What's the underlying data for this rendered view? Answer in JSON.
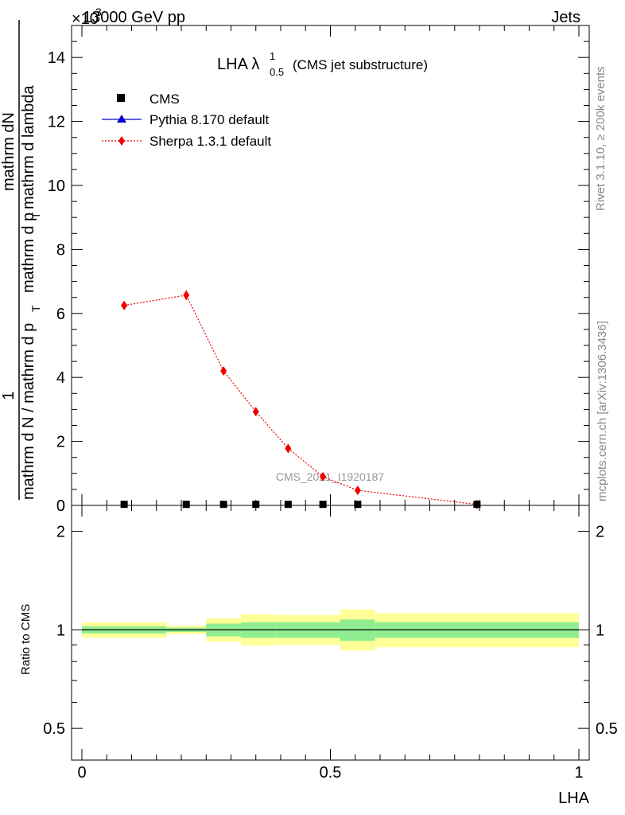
{
  "header": {
    "energy": "13000 GeV pp",
    "process": "Jets",
    "exponent": "×10",
    "exponent_power": "3"
  },
  "side_labels": {
    "rivet": "Rivet 3.1.10, ≥ 200k events",
    "mcplots": "mcplots.cern.ch [arXiv:1306.3436]"
  },
  "watermark": "CMS_2021_I1920187",
  "top_panel": {
    "title_main": "LHA λ",
    "title_sup": "1",
    "title_sub": "0.5",
    "title_tail": "(CMS jet substructure)",
    "ylabel_num": "1",
    "ylabel_num2": "mathrm dN",
    "ylabel_den": "mathrm d N / mathrm d p",
    "ylabel_den2": "mathrm d p",
    "ylabel_den3": "mathrm d lambda",
    "ylabel_sub": "T",
    "ylabel_sep": "mathrm d"
  },
  "bottom_panel": {
    "ylabel": "Ratio to CMS",
    "xlabel": "LHA"
  },
  "legend": [
    {
      "name": "CMS",
      "color": "#000000",
      "marker": "square"
    },
    {
      "name": "Pythia 8.170 default",
      "color": "#0000cc",
      "marker": "triangle"
    },
    {
      "name": "Sherpa 1.3.1 default",
      "color": "#ee0000",
      "marker": "diamond"
    }
  ],
  "chart_data": [
    {
      "type": "line",
      "panel": "main",
      "xlim": [
        0,
        1
      ],
      "ylim": [
        0,
        15
      ],
      "y_scale_factor": 1000,
      "yticks": [
        0,
        2,
        4,
        6,
        8,
        10,
        12,
        14
      ],
      "x": [
        0.085,
        0.21,
        0.285,
        0.35,
        0.415,
        0.485,
        0.555,
        0.795
      ],
      "series": [
        {
          "name": "CMS",
          "values": [
            0.02,
            0.02,
            0.02,
            0.02,
            0.02,
            0.02,
            0.02,
            0.02
          ]
        },
        {
          "name": "Pythia 8.170 default",
          "values": [
            0.01,
            0.01,
            0.01,
            0.01,
            0.01,
            0.01,
            0.01,
            0.01
          ]
        },
        {
          "name": "Sherpa 1.3.1 default",
          "values": [
            6.25,
            6.57,
            4.2,
            2.93,
            1.78,
            0.9,
            0.47,
            0.03
          ],
          "errors": [
            0.12,
            0.15,
            0.12,
            0.1,
            0.08,
            0.06,
            0.05,
            0.02
          ]
        }
      ]
    },
    {
      "type": "area",
      "panel": "ratio",
      "xlim": [
        0,
        1
      ],
      "ylim": [
        0.4,
        2.4
      ],
      "log_scale": true,
      "yticks": [
        0.5,
        1,
        2
      ],
      "ytick_labels": [
        "0.5",
        "1",
        "2"
      ],
      "xticks": [
        0,
        0.5,
        1
      ],
      "xtick_labels": [
        "0",
        "0.5",
        "1"
      ],
      "bin_edges": [
        0,
        0.17,
        0.25,
        0.32,
        0.39,
        0.52,
        0.59,
        1.0
      ],
      "inner_band": {
        "lo": [
          0.975,
          0.985,
          0.955,
          0.945,
          0.945,
          0.925,
          0.945
        ],
        "hi": [
          1.025,
          1.015,
          1.045,
          1.055,
          1.055,
          1.075,
          1.055
        ]
      },
      "outer_band": {
        "lo": [
          0.945,
          0.97,
          0.92,
          0.895,
          0.9,
          0.865,
          0.885
        ],
        "hi": [
          1.055,
          1.03,
          1.085,
          1.115,
          1.11,
          1.155,
          1.125
        ]
      },
      "ratio_line": 1,
      "colors": {
        "inner": "#90ee90",
        "outer": "#ffff99"
      }
    }
  ]
}
